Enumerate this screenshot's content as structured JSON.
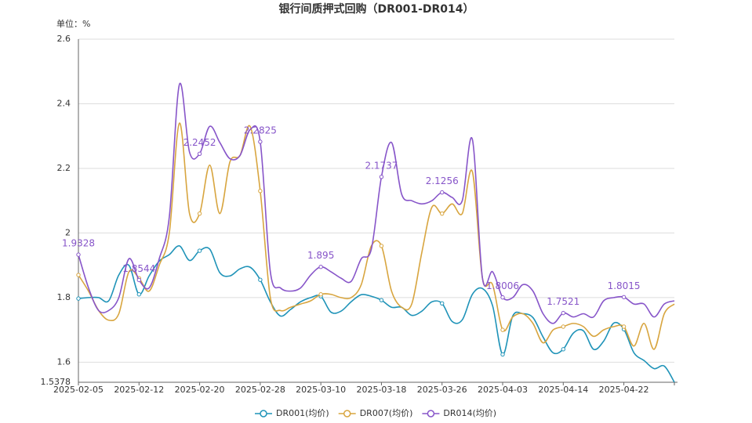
{
  "chart_data": {
    "type": "line",
    "title": "银行间质押式回购（DR001-DR014）",
    "y_unit_label": "单位：%",
    "categories": [
      "2025-02-05",
      null,
      null,
      null,
      null,
      null,
      "2025-02-12",
      null,
      null,
      null,
      null,
      null,
      "2025-02-20",
      null,
      null,
      null,
      null,
      null,
      "2025-02-28",
      null,
      null,
      null,
      null,
      null,
      "2025-03-10",
      null,
      null,
      null,
      null,
      null,
      "2025-03-18",
      null,
      null,
      null,
      null,
      null,
      "2025-03-26",
      null,
      null,
      null,
      null,
      null,
      "2025-04-03",
      null,
      null,
      null,
      null,
      null,
      "2025-04-14",
      null,
      null,
      null,
      null,
      null,
      "2025-04-22",
      null,
      null,
      null,
      null,
      null
    ],
    "series": [
      {
        "name": "DR001(均价)",
        "color": "#1f93b8",
        "values": [
          1.797,
          1.8,
          1.8,
          1.79,
          1.87,
          1.9,
          1.81,
          1.867,
          1.913,
          1.933,
          1.96,
          1.915,
          1.945,
          1.95,
          1.877,
          1.867,
          1.889,
          1.894,
          1.855,
          1.787,
          1.743,
          1.763,
          1.787,
          1.8,
          1.804,
          1.755,
          1.758,
          1.787,
          1.809,
          1.804,
          1.792,
          1.77,
          1.77,
          1.745,
          1.758,
          1.787,
          1.782,
          1.726,
          1.731,
          1.81,
          1.828,
          1.775,
          1.624,
          1.743,
          1.75,
          1.738,
          1.678,
          1.629,
          1.64,
          1.69,
          1.697,
          1.64,
          1.665,
          1.721,
          1.702,
          1.629,
          1.605,
          1.58,
          1.588,
          1.5378
        ]
      },
      {
        "name": "DR007(均价)",
        "color": "#d8a53f",
        "values": [
          1.87,
          1.82,
          1.76,
          1.73,
          1.75,
          1.88,
          1.86,
          1.82,
          1.9,
          2.0,
          2.34,
          2.06,
          2.06,
          2.21,
          2.06,
          2.22,
          2.24,
          2.33,
          2.13,
          1.8,
          1.76,
          1.77,
          1.78,
          1.79,
          1.81,
          1.81,
          1.8,
          1.8,
          1.84,
          1.96,
          1.96,
          1.82,
          1.77,
          1.78,
          1.94,
          2.08,
          2.06,
          2.09,
          2.06,
          2.19,
          1.86,
          1.84,
          1.7,
          1.74,
          1.75,
          1.72,
          1.66,
          1.7,
          1.71,
          1.72,
          1.71,
          1.68,
          1.7,
          1.71,
          1.71,
          1.65,
          1.72,
          1.64,
          1.75,
          1.78
        ]
      },
      {
        "name": "DR014(均价)",
        "color": "#8755c9",
        "data_labels": true,
        "values": [
          1.9328,
          1.83,
          1.76,
          1.76,
          1.8,
          1.92,
          1.8544,
          1.83,
          1.92,
          2.05,
          2.46,
          2.25,
          2.2452,
          2.33,
          2.28,
          2.23,
          2.24,
          2.32,
          2.2825,
          1.88,
          1.83,
          1.82,
          1.83,
          1.87,
          1.895,
          1.88,
          1.86,
          1.85,
          1.92,
          1.95,
          2.1737,
          2.28,
          2.12,
          2.1,
          2.09,
          2.1,
          2.1256,
          2.11,
          2.1,
          2.29,
          1.86,
          1.88,
          1.8006,
          1.8,
          1.84,
          1.82,
          1.75,
          1.72,
          1.7521,
          1.74,
          1.75,
          1.74,
          1.79,
          1.8,
          1.8015,
          1.78,
          1.78,
          1.74,
          1.78,
          1.79
        ]
      }
    ],
    "ylim": [
      1.5378,
      2.6
    ],
    "yticks": [
      1.5378,
      1.6,
      1.8,
      2,
      2.2,
      2.4,
      2.6
    ],
    "grid": true,
    "smooth": true,
    "legend": "bottom"
  }
}
